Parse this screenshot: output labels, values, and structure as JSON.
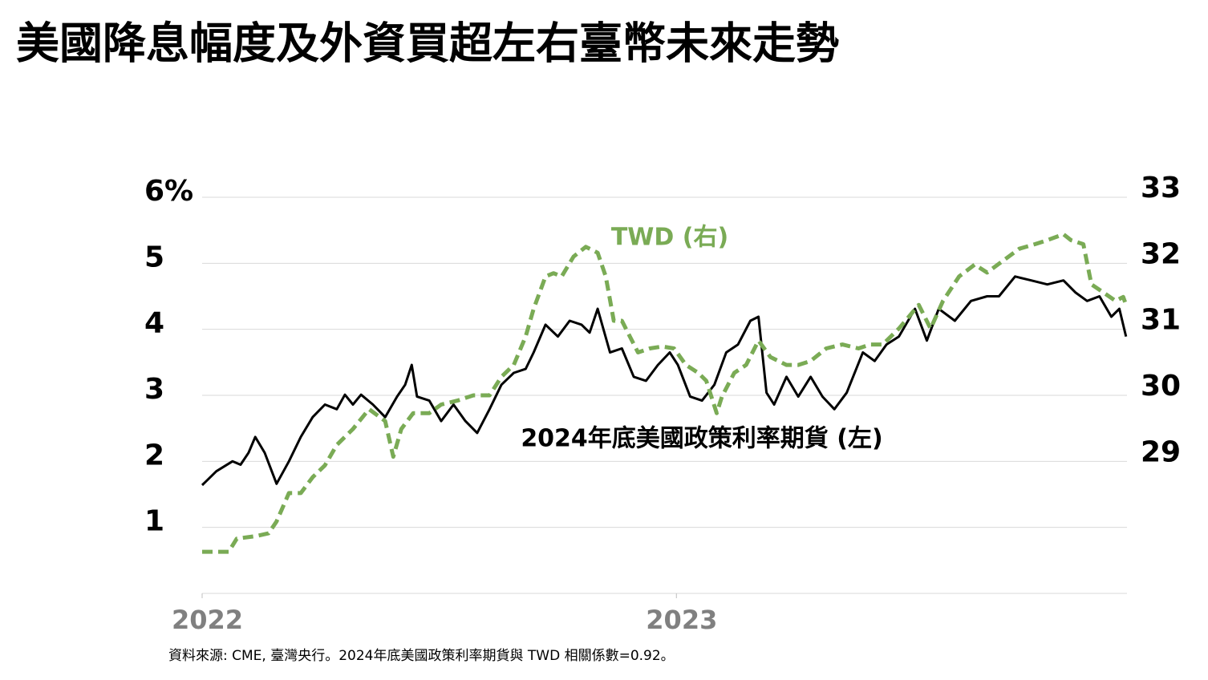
{
  "chart_data": {
    "type": "line",
    "title": "美國降息幅度及外資買超左右臺幣未來走勢",
    "annotations": [
      "TWD (右)",
      "2024年底美國政策利率期貨 (左)"
    ],
    "source": "資料來源: CME, 臺灣央行。2024年底美國政策利率期貨與 TWD 相關係數=0.92。",
    "xlim": [
      2022,
      2023.95
    ],
    "xticks": [
      2022,
      2023
    ],
    "ylim": [
      0,
      6
    ],
    "yticks": [
      1,
      2,
      3,
      4,
      5,
      {
        "value": 6,
        "label": "6%"
      }
    ],
    "y2lim": [
      27,
      33
    ],
    "y2ticks": [
      29,
      30,
      31,
      32,
      33
    ],
    "grid": true,
    "series": [
      {
        "name": "2024年底美國政策利率期貨 (左)",
        "color": "#000000",
        "axis": "y",
        "x": [
          2022.0,
          2022.03,
          2022.064,
          2022.081,
          2022.098,
          2022.112,
          2022.132,
          2022.157,
          2022.183,
          2022.208,
          2022.233,
          2022.259,
          2022.284,
          2022.301,
          2022.318,
          2022.335,
          2022.36,
          2022.386,
          2022.411,
          2022.428,
          2022.442,
          2022.453,
          2022.479,
          2022.504,
          2022.53,
          2022.555,
          2022.58,
          2022.606,
          2022.631,
          2022.657,
          2022.682,
          2022.699,
          2022.724,
          2022.75,
          2022.775,
          2022.8,
          2022.817,
          2022.834,
          2022.86,
          2022.885,
          2022.91,
          2022.936,
          2022.961,
          2022.986,
          2023.003,
          2023.029,
          2023.054,
          2023.08,
          2023.105,
          2023.13,
          2023.156,
          2023.173,
          2023.19,
          2023.206,
          2023.232,
          2023.257,
          2023.283,
          2023.308,
          2023.333,
          2023.359,
          2023.393,
          2023.418,
          2023.443,
          2023.469,
          2023.503,
          2023.528,
          2023.553,
          2023.587,
          2023.621,
          2023.655,
          2023.68,
          2023.714,
          2023.748,
          2023.782,
          2023.816,
          2023.841,
          2023.866,
          2023.892,
          2023.917,
          2023.934,
          2023.948
        ],
        "values": [
          1.64,
          1.85,
          2.0,
          1.95,
          2.13,
          2.37,
          2.13,
          1.66,
          2.0,
          2.37,
          2.67,
          2.86,
          2.79,
          3.01,
          2.86,
          3.01,
          2.86,
          2.67,
          2.98,
          3.16,
          3.46,
          2.98,
          2.92,
          2.61,
          2.86,
          2.61,
          2.43,
          2.79,
          3.16,
          3.34,
          3.4,
          3.65,
          4.07,
          3.89,
          4.13,
          4.07,
          3.95,
          4.31,
          3.65,
          3.71,
          3.28,
          3.22,
          3.46,
          3.65,
          3.46,
          2.98,
          2.92,
          3.16,
          3.65,
          3.77,
          4.13,
          4.19,
          3.04,
          2.86,
          3.28,
          2.98,
          3.28,
          2.98,
          2.79,
          3.04,
          3.65,
          3.52,
          3.77,
          3.89,
          4.31,
          3.83,
          4.31,
          4.13,
          4.43,
          4.5,
          4.5,
          4.8,
          4.74,
          4.68,
          4.74,
          4.56,
          4.43,
          4.5,
          4.19,
          4.31,
          3.89
        ]
      },
      {
        "name": "TWD (右)",
        "color": "#7aab55",
        "axis": "y2",
        "dashed": true,
        "x": [
          2022.0,
          2022.03,
          2022.056,
          2022.073,
          2022.115,
          2022.14,
          2022.157,
          2022.183,
          2022.208,
          2022.233,
          2022.259,
          2022.284,
          2022.318,
          2022.352,
          2022.386,
          2022.403,
          2022.42,
          2022.445,
          2022.479,
          2022.504,
          2022.538,
          2022.572,
          2022.606,
          2022.631,
          2022.657,
          2022.682,
          2022.699,
          2022.724,
          2022.741,
          2022.758,
          2022.783,
          2022.809,
          2022.834,
          2022.851,
          2022.868,
          2022.885,
          2022.902,
          2022.919,
          2022.944,
          2022.97,
          2022.995,
          2023.02,
          2023.046,
          2023.063,
          2023.085,
          2023.096,
          2023.122,
          2023.147,
          2023.173,
          2023.198,
          2023.232,
          2023.257,
          2023.283,
          2023.316,
          2023.35,
          2023.384,
          2023.409,
          2023.435,
          2023.469,
          2023.511,
          2023.536,
          2023.562,
          2023.596,
          2023.629,
          2023.655,
          2023.689,
          2023.723,
          2023.756,
          2023.782,
          2023.816,
          2023.832,
          2023.858,
          2023.875,
          2023.9,
          2023.926,
          2023.942,
          2023.948
        ],
        "values": [
          27.63,
          27.63,
          27.63,
          27.83,
          27.87,
          27.91,
          28.09,
          28.52,
          28.52,
          28.76,
          28.94,
          29.25,
          29.49,
          29.79,
          29.61,
          29.07,
          29.49,
          29.73,
          29.73,
          29.86,
          29.92,
          30.0,
          30.0,
          30.28,
          30.46,
          30.89,
          31.31,
          31.8,
          31.85,
          31.8,
          32.1,
          32.25,
          32.16,
          31.8,
          31.13,
          31.13,
          30.89,
          30.65,
          30.71,
          30.74,
          30.71,
          30.46,
          30.34,
          30.22,
          29.73,
          29.98,
          30.34,
          30.46,
          30.83,
          30.58,
          30.46,
          30.46,
          30.52,
          30.71,
          30.77,
          30.71,
          30.77,
          30.77,
          31.01,
          31.37,
          31.01,
          31.43,
          31.8,
          31.98,
          31.86,
          32.04,
          32.22,
          32.29,
          32.35,
          32.44,
          32.35,
          32.29,
          31.68,
          31.56,
          31.43,
          31.49,
          31.37
        ]
      }
    ]
  }
}
